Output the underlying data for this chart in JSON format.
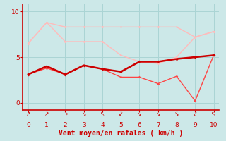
{
  "xlabel": "Vent moyen/en rafales ( km/h )",
  "x": [
    0,
    1,
    2,
    3,
    4,
    5,
    6,
    7,
    8,
    9,
    10
  ],
  "line_data": [
    [
      6.5,
      8.8,
      8.3,
      8.3,
      8.3,
      8.3,
      8.3,
      8.3,
      8.3,
      7.2,
      7.8
    ],
    [
      6.5,
      8.8,
      6.7,
      6.7,
      6.7,
      5.2,
      4.5,
      4.3,
      5.0,
      7.2,
      7.8
    ],
    [
      3.1,
      4.0,
      3.1,
      4.1,
      3.7,
      3.4,
      4.5,
      4.5,
      4.8,
      5.0,
      5.2
    ],
    [
      3.1,
      4.0,
      3.1,
      4.1,
      3.7,
      3.4,
      4.5,
      4.5,
      4.8,
      5.0,
      5.2
    ],
    [
      3.1,
      3.8,
      3.1,
      4.1,
      3.7,
      2.8,
      2.8,
      2.1,
      2.9,
      0.2,
      5.2
    ]
  ],
  "line_colors": [
    "#ffbbbb",
    "#ffbbbb",
    "#cc0000",
    "#cc0000",
    "#ff4444"
  ],
  "line_widths": [
    1.0,
    1.0,
    1.8,
    1.0,
    1.0
  ],
  "line_zorders": [
    2,
    2,
    5,
    3,
    3
  ],
  "marker_size": 1.8,
  "ylim": [
    -0.8,
    10.8
  ],
  "xlim": [
    -0.3,
    10.3
  ],
  "yticks": [
    0,
    5,
    10
  ],
  "xticks": [
    0,
    1,
    2,
    3,
    4,
    5,
    6,
    7,
    8,
    9,
    10
  ],
  "wind_symbols": [
    "↗",
    "↗",
    "→",
    "↘",
    "↖",
    "↙",
    "↘",
    "↘",
    "↘",
    "↙",
    "↖"
  ],
  "bg_color": "#cce8e8",
  "grid_color": "#aad4d4",
  "axis_color": "#cc0000",
  "tick_color": "#cc0000",
  "label_color": "#cc0000",
  "tick_fontsize": 6.5,
  "xlabel_fontsize": 7.0
}
